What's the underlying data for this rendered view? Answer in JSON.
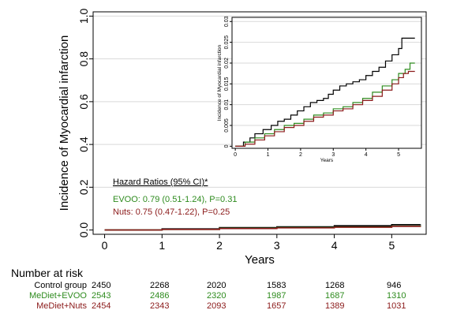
{
  "chart_data": [
    {
      "type": "line",
      "step": true,
      "xlabel": "Years",
      "ylabel": "Incidence of Myocardial infarction",
      "xlim": [
        -0.2,
        5.6
      ],
      "ylim": [
        -0.02,
        1.02
      ],
      "xticks": [
        0,
        1,
        2,
        3,
        4,
        5
      ],
      "yticks": [
        0.0,
        0.2,
        0.4,
        0.6,
        0.8,
        1.0
      ],
      "ytick_labels": [
        "0.0",
        "0.2",
        "0.4",
        "0.6",
        "0.8",
        "1.0"
      ],
      "grid": "horizontal",
      "series": [
        {
          "color": "#000000",
          "x": [
            0,
            1,
            2,
            3,
            4,
            5,
            5.5
          ],
          "y": [
            0,
            0.005,
            0.011,
            0.015,
            0.02,
            0.025,
            0.026
          ]
        },
        {
          "color": "#2e8b1e",
          "x": [
            0,
            1,
            2,
            3,
            4,
            5,
            5.5
          ],
          "y": [
            0,
            0.003,
            0.008,
            0.011,
            0.014,
            0.018,
            0.02
          ]
        },
        {
          "color": "#8b1a1a",
          "x": [
            0,
            1,
            2,
            3,
            4,
            5,
            5.5
          ],
          "y": [
            0,
            0.003,
            0.007,
            0.01,
            0.013,
            0.017,
            0.018
          ]
        }
      ],
      "annotations": {
        "heading": "Hazard Ratios (95% CI)*",
        "evoo": "EVOO: 0.79 (0.51-1.24), P=0.31",
        "nuts": "Nuts: 0.75 (0.47-1.22), P=0.25"
      }
    },
    {
      "type": "line",
      "step": true,
      "xlabel": "Years",
      "ylabel": "Incidence of Myocardial infarction",
      "xlim": [
        -0.1,
        5.7
      ],
      "ylim": [
        -0.0005,
        0.031
      ],
      "xticks": [
        0,
        1,
        2,
        3,
        4,
        5
      ],
      "yticks": [
        0,
        0.005,
        0.01,
        0.015,
        0.02,
        0.025,
        0.03
      ],
      "ytick_labels": [
        "0",
        "0.005",
        "0.01",
        "0.015",
        "0.02",
        "0.025",
        "0.03"
      ],
      "grid": "horizontal",
      "series": [
        {
          "color": "#000000",
          "x": [
            0,
            0.25,
            0.45,
            0.6,
            0.85,
            1.1,
            1.3,
            1.5,
            1.7,
            1.9,
            2.1,
            2.3,
            2.5,
            2.7,
            2.85,
            3.0,
            3.2,
            3.4,
            3.6,
            3.8,
            4.0,
            4.2,
            4.4,
            4.6,
            4.8,
            5.0,
            5.1,
            5.5
          ],
          "y": [
            0,
            0.001,
            0.002,
            0.003,
            0.004,
            0.005,
            0.006,
            0.0065,
            0.0075,
            0.0085,
            0.0095,
            0.0105,
            0.011,
            0.0115,
            0.0125,
            0.0135,
            0.0145,
            0.015,
            0.0155,
            0.016,
            0.017,
            0.018,
            0.019,
            0.0205,
            0.022,
            0.0235,
            0.026,
            0.026
          ]
        },
        {
          "color": "#2e8b1e",
          "x": [
            0,
            0.3,
            0.6,
            0.9,
            1.2,
            1.5,
            1.8,
            2.1,
            2.4,
            2.7,
            3.0,
            3.3,
            3.6,
            3.9,
            4.2,
            4.5,
            4.8,
            5.0,
            5.2,
            5.35,
            5.5
          ],
          "y": [
            0,
            0.001,
            0.002,
            0.003,
            0.004,
            0.005,
            0.0055,
            0.0065,
            0.0075,
            0.008,
            0.009,
            0.0095,
            0.0105,
            0.0115,
            0.013,
            0.0145,
            0.016,
            0.0175,
            0.0185,
            0.02,
            0.02
          ]
        },
        {
          "color": "#8b1a1a",
          "x": [
            0,
            0.3,
            0.6,
            0.9,
            1.2,
            1.5,
            1.8,
            2.1,
            2.4,
            2.7,
            3.0,
            3.3,
            3.6,
            3.9,
            4.2,
            4.5,
            4.8,
            5.0,
            5.15,
            5.3,
            5.5
          ],
          "y": [
            0,
            0.0005,
            0.0015,
            0.0025,
            0.0035,
            0.0045,
            0.005,
            0.006,
            0.007,
            0.0075,
            0.0085,
            0.009,
            0.01,
            0.011,
            0.012,
            0.0135,
            0.015,
            0.0165,
            0.0175,
            0.018,
            0.018
          ]
        }
      ]
    }
  ],
  "risk_table": {
    "title": "Number at risk",
    "rows": [
      {
        "label": "Control group",
        "color": "#000000",
        "values": [
          "2450",
          "2268",
          "2020",
          "1583",
          "1268",
          "946"
        ]
      },
      {
        "label": "MeDiet+EVOO",
        "color": "#2e8b1e",
        "values": [
          "2543",
          "2486",
          "2320",
          "1987",
          "1687",
          "1310"
        ]
      },
      {
        "label": "MeDiet+Nuts",
        "color": "#8b1a1a",
        "values": [
          "2454",
          "2343",
          "2093",
          "1657",
          "1389",
          "1031"
        ]
      }
    ]
  }
}
